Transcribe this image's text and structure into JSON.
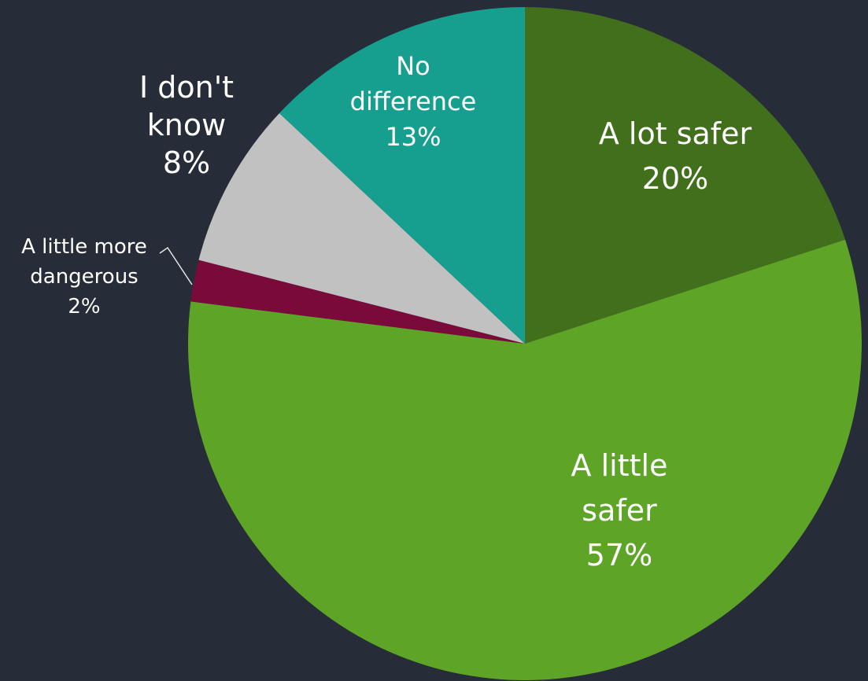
{
  "chart_data": {
    "type": "pie",
    "title": "",
    "background": "#272d38",
    "slices": [
      {
        "label": "A lot safer",
        "label_lines": [
          "A lot safer"
        ],
        "value": 20,
        "value_label": "20%",
        "color": "#426f1b"
      },
      {
        "label": "A little safer",
        "label_lines": [
          "A little",
          "safer"
        ],
        "value": 57,
        "value_label": "57%",
        "color": "#5ea426"
      },
      {
        "label": "A little more dangerous",
        "label_lines": [
          "A little more",
          "dangerous"
        ],
        "value": 2,
        "value_label": "2%",
        "color": "#790a3a"
      },
      {
        "label": "I don't know",
        "label_lines": [
          "I don't",
          "know"
        ],
        "value": 8,
        "value_label": "8%",
        "color": "#c1c1c1"
      },
      {
        "label": "No difference",
        "label_lines": [
          "No",
          "difference"
        ],
        "value": 13,
        "value_label": "13%",
        "color": "#169f8f"
      }
    ]
  }
}
